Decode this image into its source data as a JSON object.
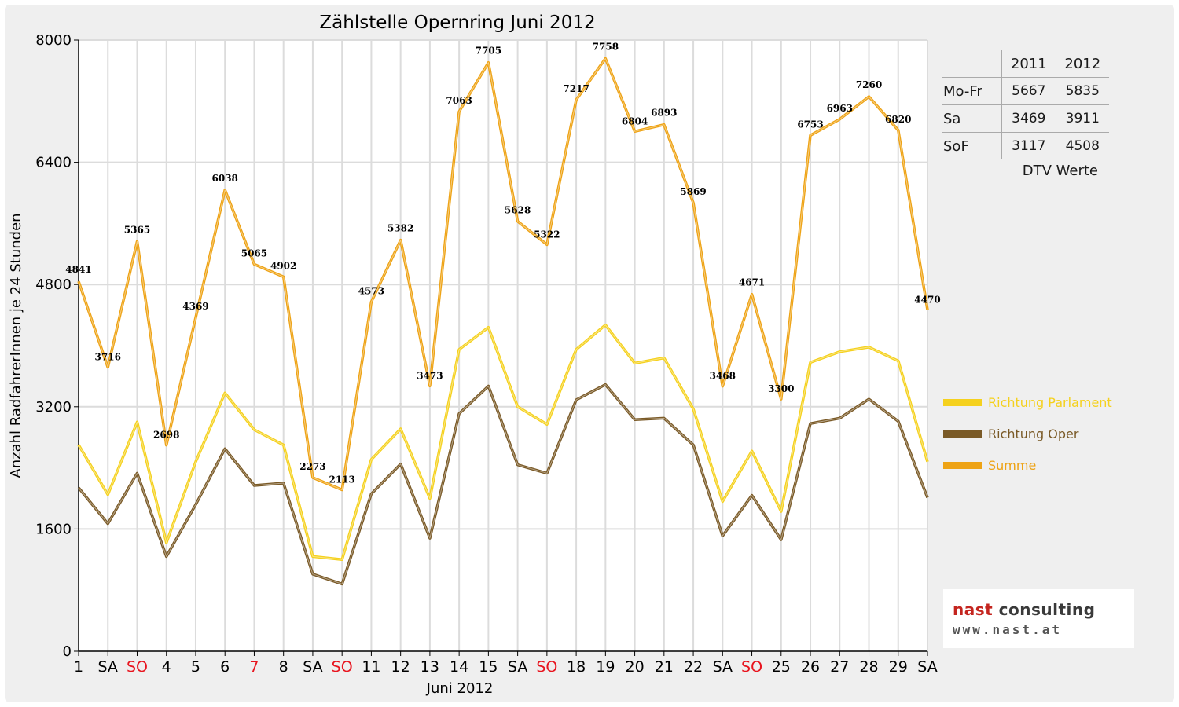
{
  "chart_data": {
    "type": "line",
    "title": "Zählstelle Opernring Juni 2012",
    "xlabel": "Juni 2012",
    "ylabel": "Anzahl RadfahrerInnen je 24 Stunden",
    "ylim": [
      0,
      8000
    ],
    "yticks": [
      0,
      1600,
      3200,
      4800,
      6400,
      8000
    ],
    "grid": true,
    "categories": [
      "1",
      "SA",
      "SO",
      "4",
      "5",
      "6",
      "7",
      "8",
      "SA",
      "SO",
      "11",
      "12",
      "13",
      "14",
      "15",
      "SA",
      "SO",
      "18",
      "19",
      "20",
      "21",
      "22",
      "SA",
      "SO",
      "25",
      "26",
      "27",
      "28",
      "29",
      "SA"
    ],
    "red_categories": [
      2,
      6,
      9,
      16,
      23
    ],
    "series": [
      {
        "name": "Richtung Parlament",
        "color": "#f5d11e",
        "values": [
          2700,
          2050,
          3000,
          1420,
          2480,
          3380,
          2900,
          2700,
          1240,
          1200,
          2510,
          2910,
          2000,
          3950,
          4240,
          3200,
          2970,
          3950,
          4270,
          3770,
          3840,
          3170,
          1960,
          2620,
          1830,
          3780,
          3920,
          3980,
          3800,
          2480
        ]
      },
      {
        "name": "Richtung Oper",
        "color": "#7a5a27",
        "values": [
          2140,
          1670,
          2330,
          1240,
          1920,
          2650,
          2170,
          2200,
          1010,
          880,
          2060,
          2450,
          1480,
          3110,
          3470,
          2440,
          2330,
          3290,
          3490,
          3030,
          3050,
          2700,
          1510,
          2040,
          1460,
          2980,
          3050,
          3300,
          3010,
          2010
        ]
      },
      {
        "name": "Summe",
        "color": "#eea315",
        "values": [
          4841,
          3716,
          5365,
          2698,
          4369,
          6038,
          5065,
          4902,
          2273,
          2113,
          4573,
          5382,
          3473,
          7063,
          7705,
          5628,
          5322,
          7217,
          7758,
          6804,
          6893,
          5869,
          3468,
          4671,
          3300,
          6753,
          6963,
          7260,
          6820,
          4470
        ]
      }
    ]
  },
  "dtv_table": {
    "headers": [
      "",
      "2011",
      "2012"
    ],
    "rows": [
      {
        "label": "Mo-Fr",
        "v2011": "5667",
        "v2012": "5835"
      },
      {
        "label": "Sa",
        "v2011": "3469",
        "v2012": "3911"
      },
      {
        "label": "SoF",
        "v2011": "3117",
        "v2012": "4508"
      }
    ],
    "caption": "DTV Werte"
  },
  "logo": {
    "name_part1": "nast",
    "name_part2": " consulting",
    "url": "www.nast.at",
    "accent": "#c4251f"
  }
}
